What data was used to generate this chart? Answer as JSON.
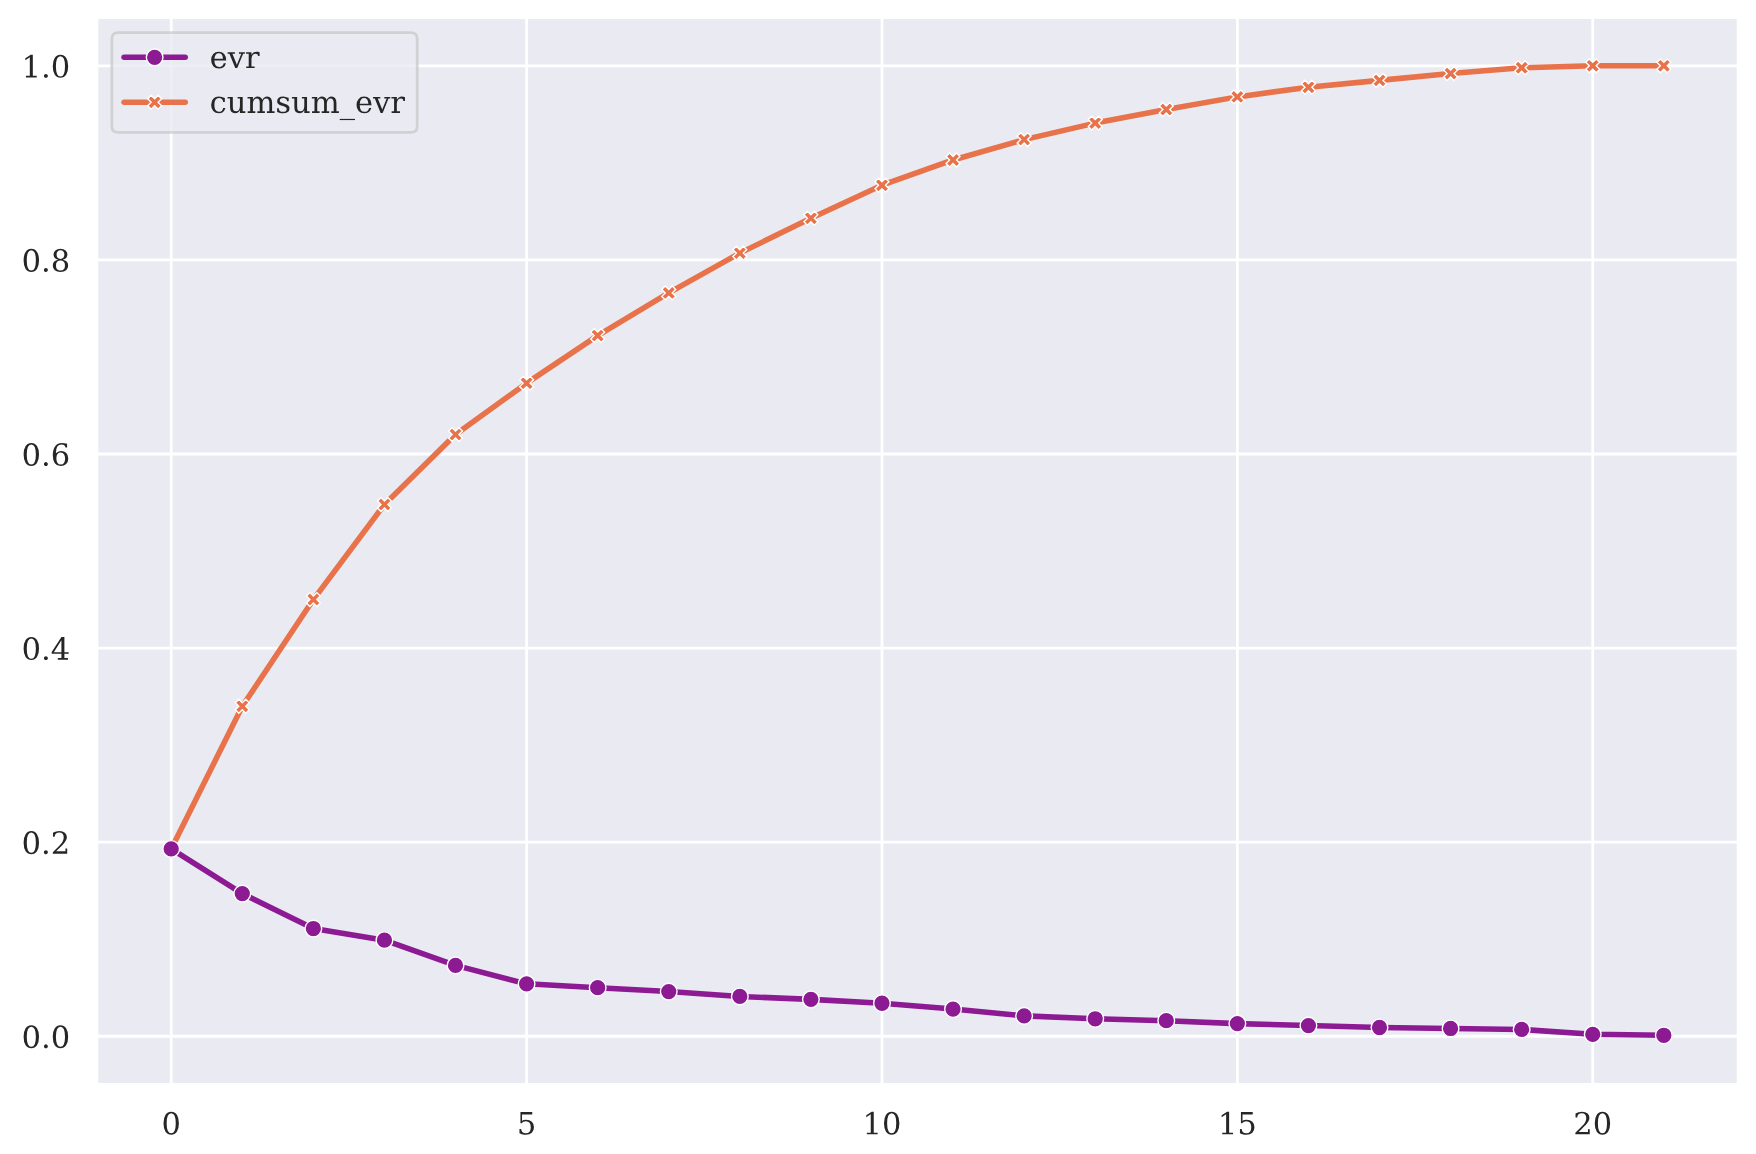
{
  "chart_data": {
    "type": "line",
    "x": [
      0,
      1,
      2,
      3,
      4,
      5,
      6,
      7,
      8,
      9,
      10,
      11,
      12,
      13,
      14,
      15,
      16,
      17,
      18,
      19,
      20,
      21
    ],
    "series": [
      {
        "name": "evr",
        "color": "#8c1b93",
        "marker": "circle",
        "values": [
          0.193,
          0.147,
          0.111,
          0.099,
          0.073,
          0.054,
          0.05,
          0.046,
          0.041,
          0.038,
          0.034,
          0.028,
          0.021,
          0.018,
          0.016,
          0.013,
          0.011,
          0.009,
          0.008,
          0.007,
          0.002,
          0.001
        ]
      },
      {
        "name": "cumsum_evr",
        "color": "#e8734a",
        "marker": "cross",
        "values": [
          0.193,
          0.34,
          0.45,
          0.548,
          0.62,
          0.673,
          0.722,
          0.766,
          0.807,
          0.843,
          0.877,
          0.903,
          0.924,
          0.941,
          0.955,
          0.968,
          0.978,
          0.985,
          0.992,
          0.998,
          1.0,
          1.0
        ]
      }
    ],
    "xlim": [
      -1.05,
      22.05
    ],
    "xticks": [
      0,
      5,
      10,
      15,
      20
    ],
    "ylim": [
      -0.05,
      1.05
    ],
    "yticks": [
      {
        "value": 0,
        "label": "0.0"
      },
      0.2,
      0.4,
      0.6,
      0.8,
      {
        "value": 1,
        "label": "1.0"
      }
    ],
    "grid": true,
    "legend": "top left",
    "line_style": "solid"
  }
}
